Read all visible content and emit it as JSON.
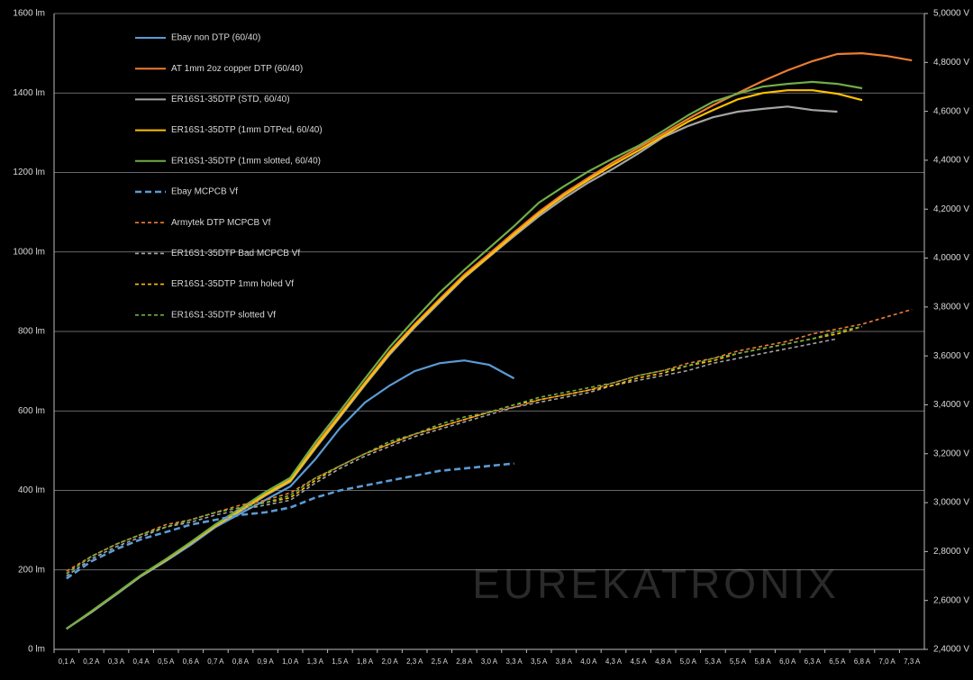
{
  "chart_data": {
    "type": "line",
    "watermark": "EUREKATRONIX",
    "categories": [
      "0,1 A",
      "0,2 A",
      "0,3 A",
      "0,4 A",
      "0,5 A",
      "0,6 A",
      "0,7 A",
      "0,8 A",
      "0,9 A",
      "1,0 A",
      "1,3 A",
      "1,5 A",
      "1,8 A",
      "2,0 A",
      "2,3 A",
      "2,5 A",
      "2,8 A",
      "3,0 A",
      "3,3 A",
      "3,5 A",
      "3,8 A",
      "4,0 A",
      "4,3 A",
      "4,5 A",
      "4,8 A",
      "5,0 A",
      "5,3 A",
      "5,5 A",
      "5,8 A",
      "6,0 A",
      "6,3 A",
      "6,5 A",
      "6,8 A",
      "7,0 A",
      "7,3 A"
    ],
    "ylim": [
      0,
      1600
    ],
    "yticks": [
      {
        "value": 0,
        "label": "0 lm"
      },
      {
        "value": 200,
        "label": "200 lm"
      },
      {
        "value": 400,
        "label": "400 lm"
      },
      {
        "value": 600,
        "label": "600 lm"
      },
      {
        "value": 800,
        "label": "800 lm"
      },
      {
        "value": 1000,
        "label": "1000 lm"
      },
      {
        "value": 1200,
        "label": "1200 lm"
      },
      {
        "value": 1400,
        "label": "1400 lm"
      },
      {
        "value": 1600,
        "label": "1600 lm"
      }
    ],
    "y2lim": [
      2.4,
      5.0
    ],
    "y2ticks": [
      {
        "value": 2.4,
        "label": "2,4000 V"
      },
      {
        "value": 2.6,
        "label": "2,6000 V"
      },
      {
        "value": 2.8,
        "label": "2,8000 V"
      },
      {
        "value": 3.0,
        "label": "3,0000 V"
      },
      {
        "value": 3.2,
        "label": "3,2000 V"
      },
      {
        "value": 3.4,
        "label": "3,4000 V"
      },
      {
        "value": 3.6,
        "label": "3,6000 V"
      },
      {
        "value": 3.8,
        "label": "3,8000 V"
      },
      {
        "value": 4.0,
        "label": "4,0000 V"
      },
      {
        "value": 4.2,
        "label": "4,2000 V"
      },
      {
        "value": 4.4,
        "label": "4,4000 V"
      },
      {
        "value": 4.6,
        "label": "4,6000 V"
      },
      {
        "value": 4.8,
        "label": "4,8000 V"
      },
      {
        "value": 5.0,
        "label": "5,0000 V"
      }
    ],
    "grid": true,
    "legend": "upper left",
    "series": [
      {
        "name": "Ebay non DTP (60/40)",
        "color": "#5b9bd5",
        "dashed": false,
        "values": [
          52,
          93,
          138,
          184,
          222,
          263,
          308,
          342,
          376,
          410,
          478,
          557,
          621,
          664,
          700,
          720,
          727,
          716,
          682,
          null,
          null,
          null,
          null,
          null,
          null,
          null,
          null,
          null,
          null,
          null,
          null,
          null,
          null,
          null,
          null
        ]
      },
      {
        "name": "AT 1mm 2oz copper DTP (60/40)",
        "color": "#ed7d31",
        "dashed": false,
        "values": [
          52,
          95,
          140,
          186,
          225,
          268,
          312,
          350,
          390,
          428,
          512,
          591,
          671,
          750,
          818,
          881,
          943,
          995,
          1049,
          1101,
          1147,
          1187,
          1226,
          1262,
          1298,
          1335,
          1369,
          1400,
          1430,
          1457,
          1480,
          1498,
          1500,
          1493,
          1482
        ]
      },
      {
        "name": "ER16S1-35DTP (STD, 60/40)",
        "color": "#a5a5a5",
        "dashed": false,
        "values": [
          52,
          95,
          140,
          185,
          224,
          266,
          310,
          348,
          387,
          422,
          505,
          585,
          665,
          742,
          810,
          873,
          935,
          988,
          1040,
          1090,
          1135,
          1175,
          1210,
          1248,
          1289,
          1317,
          1339,
          1353,
          1360,
          1366,
          1357,
          1353,
          null,
          null,
          null
        ]
      },
      {
        "name": "ER16S1-35DTP (1mm DTPed, 60/40)",
        "color": "#ffc000",
        "dashed": false,
        "values": [
          52,
          95,
          140,
          186,
          225,
          268,
          312,
          350,
          390,
          425,
          508,
          588,
          668,
          746,
          814,
          877,
          938,
          990,
          1044,
          1096,
          1142,
          1182,
          1220,
          1255,
          1292,
          1328,
          1357,
          1384,
          1400,
          1407,
          1407,
          1398,
          1382,
          null,
          null
        ]
      },
      {
        "name": "ER16S1-35DTP (1mm slotted, 60/40)",
        "color": "#70ad47",
        "dashed": false,
        "values": [
          52,
          96,
          141,
          187,
          227,
          270,
          315,
          355,
          396,
          432,
          520,
          600,
          681,
          761,
          830,
          897,
          955,
          1010,
          1065,
          1124,
          1165,
          1203,
          1236,
          1267,
          1305,
          1344,
          1378,
          1398,
          1416,
          1423,
          1428,
          1423,
          1412,
          null,
          null
        ]
      },
      {
        "name": "Ebay MCPCB Vf",
        "color": "#5b9bd5",
        "dashed": true,
        "axis": "y2",
        "values": [
          2.69,
          2.76,
          2.81,
          2.85,
          2.88,
          2.91,
          2.93,
          2.95,
          2.96,
          2.98,
          3.02,
          3.05,
          3.07,
          3.09,
          3.11,
          3.13,
          3.14,
          3.15,
          3.16,
          null,
          null,
          null,
          null,
          null,
          null,
          null,
          null,
          null,
          null,
          null,
          null,
          null,
          null,
          null,
          null
        ]
      },
      {
        "name": "Armytek DTP MCPCB Vf",
        "color": "#ed7d31",
        "dashed": true,
        "axis": "y2",
        "values": [
          2.72,
          2.78,
          2.83,
          2.87,
          2.91,
          2.93,
          2.96,
          2.99,
          3.01,
          3.04,
          3.1,
          3.15,
          3.2,
          3.24,
          3.28,
          3.31,
          3.34,
          3.37,
          3.39,
          3.42,
          3.44,
          3.46,
          3.49,
          3.52,
          3.54,
          3.57,
          3.59,
          3.62,
          3.64,
          3.66,
          3.69,
          3.71,
          3.73,
          3.76,
          3.79
        ]
      },
      {
        "name": "ER16S1-35DTP Bad MCPCB Vf",
        "color": "#a5a5a5",
        "dashed": true,
        "axis": "y2",
        "values": [
          2.7,
          2.77,
          2.82,
          2.86,
          2.9,
          2.92,
          2.95,
          2.97,
          2.99,
          3.01,
          3.08,
          3.14,
          3.19,
          3.23,
          3.27,
          3.3,
          3.33,
          3.36,
          3.39,
          3.41,
          3.43,
          3.45,
          3.48,
          3.5,
          3.52,
          3.54,
          3.57,
          3.59,
          3.61,
          3.63,
          3.65,
          3.67,
          null,
          null,
          null
        ]
      },
      {
        "name": "ER16S1-35DTP 1mm holed Vf",
        "color": "#ffc000",
        "dashed": true,
        "axis": "y2",
        "values": [
          2.71,
          2.78,
          2.83,
          2.87,
          2.9,
          2.93,
          2.96,
          2.98,
          3.0,
          3.02,
          3.09,
          3.15,
          3.2,
          3.24,
          3.28,
          3.31,
          3.34,
          3.37,
          3.4,
          3.42,
          3.44,
          3.46,
          3.48,
          3.51,
          3.53,
          3.56,
          3.58,
          3.61,
          3.63,
          3.65,
          3.67,
          3.69,
          3.72,
          null,
          null
        ]
      },
      {
        "name": "ER16S1-35DTP slotted Vf",
        "color": "#70ad47",
        "dashed": true,
        "axis": "y2",
        "values": [
          2.71,
          2.78,
          2.83,
          2.87,
          2.9,
          2.93,
          2.96,
          2.98,
          3.0,
          3.03,
          3.1,
          3.15,
          3.2,
          3.25,
          3.28,
          3.32,
          3.35,
          3.37,
          3.4,
          3.43,
          3.45,
          3.47,
          3.49,
          3.52,
          3.54,
          3.56,
          3.59,
          3.61,
          3.63,
          3.65,
          3.67,
          3.7,
          3.72,
          null,
          null
        ]
      }
    ]
  }
}
